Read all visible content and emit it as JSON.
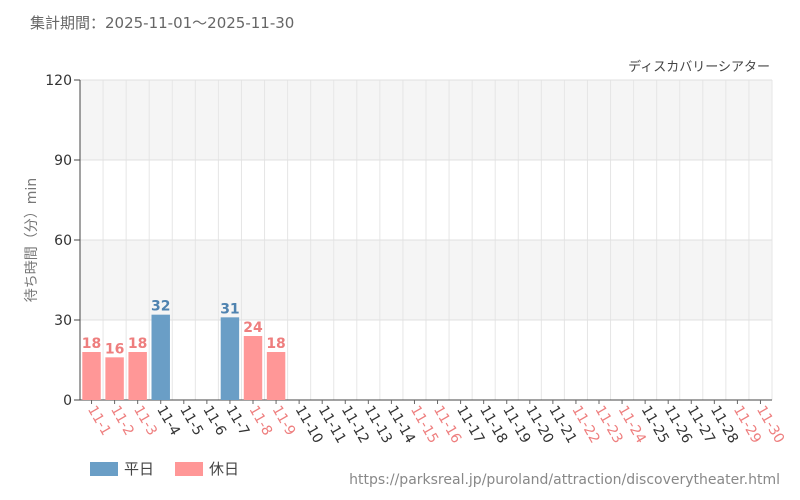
{
  "header": {
    "period_label": "集計期間：2025-11-01～2025-11-30"
  },
  "footer": {
    "source_url": "https://parksreal.jp/puroland/attraction/discoverytheater.html"
  },
  "colors": {
    "weekday": "#6a9ec6",
    "holiday": "#ff9797",
    "weekday_text": "#4f83b0",
    "holiday_text": "#ee7e7e"
  },
  "chart_data": {
    "type": "bar",
    "attraction_label": "ディスカバリーシアター",
    "ylabel": "待ち時間（分）min",
    "ylim": [
      0,
      120
    ],
    "yticks": [
      0,
      30,
      60,
      90,
      120
    ],
    "categories": [
      "11-1",
      "11-2",
      "11-3",
      "11-4",
      "11-5",
      "11-6",
      "11-7",
      "11-8",
      "11-9",
      "11-10",
      "11-11",
      "11-12",
      "11-13",
      "11-14",
      "11-15",
      "11-16",
      "11-17",
      "11-18",
      "11-19",
      "11-20",
      "11-21",
      "11-22",
      "11-23",
      "11-24",
      "11-25",
      "11-26",
      "11-27",
      "11-28",
      "11-29",
      "11-30"
    ],
    "holiday_flags": [
      true,
      true,
      true,
      false,
      false,
      false,
      false,
      true,
      true,
      false,
      false,
      false,
      false,
      false,
      true,
      true,
      false,
      false,
      false,
      false,
      false,
      true,
      true,
      true,
      false,
      false,
      false,
      false,
      true,
      true
    ],
    "values": [
      18,
      16,
      18,
      32,
      null,
      null,
      31,
      24,
      18,
      null,
      null,
      null,
      null,
      null,
      null,
      null,
      null,
      null,
      null,
      null,
      null,
      null,
      null,
      null,
      null,
      null,
      null,
      null,
      null,
      null
    ],
    "legend": [
      {
        "name": "平日",
        "key": "weekday"
      },
      {
        "name": "休日",
        "key": "holiday"
      }
    ]
  }
}
